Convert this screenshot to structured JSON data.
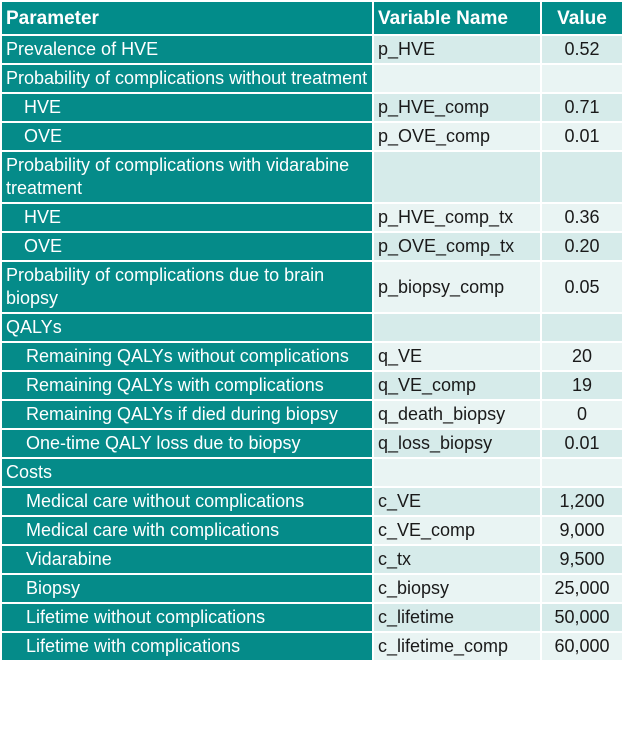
{
  "header": {
    "parameter": "Parameter",
    "variable": "Variable Name",
    "value": "Value"
  },
  "rows": [
    {
      "parameter": "Prevalence of HVE",
      "variable": "p_HVE",
      "value": "0.52",
      "level": 0
    },
    {
      "parameter": "Probability of complications without treatment",
      "variable": "",
      "value": "",
      "level": 0
    },
    {
      "parameter": "HVE",
      "variable": "p_HVE_comp",
      "value": "0.71",
      "level": 1
    },
    {
      "parameter": "OVE",
      "variable": "p_OVE_comp",
      "value": "0.01",
      "level": 1
    },
    {
      "parameter": "Probability of complications with vidarabine treatment",
      "variable": "",
      "value": "",
      "level": 0
    },
    {
      "parameter": "HVE",
      "variable": "p_HVE_comp_tx",
      "value": "0.36",
      "level": 1
    },
    {
      "parameter": "OVE",
      "variable": "p_OVE_comp_tx",
      "value": "0.20",
      "level": 1
    },
    {
      "parameter": "Probability of complications due to brain biopsy",
      "variable": "p_biopsy_comp",
      "value": "0.05",
      "level": 0
    },
    {
      "parameter": "QALYs",
      "variable": "",
      "value": "",
      "level": 0
    },
    {
      "parameter": "Remaining QALYs without complications",
      "variable": "q_VE",
      "value": "20",
      "level": 2
    },
    {
      "parameter": "Remaining QALYs with complications",
      "variable": "q_VE_comp",
      "value": "19",
      "level": 2
    },
    {
      "parameter": "Remaining QALYs if died during biopsy",
      "variable": "q_death_biopsy",
      "value": "0",
      "level": 2
    },
    {
      "parameter": "One-time QALY loss due to biopsy",
      "variable": "q_loss_biopsy",
      "value": "0.01",
      "level": 2
    },
    {
      "parameter": "Costs",
      "variable": "",
      "value": "",
      "level": 0
    },
    {
      "parameter": "Medical care without complications",
      "variable": "c_VE",
      "value": "1,200",
      "level": 2
    },
    {
      "parameter": "Medical care with complications",
      "variable": "c_VE_comp",
      "value": "9,000",
      "level": 2
    },
    {
      "parameter": "Vidarabine",
      "variable": "c_tx",
      "value": "9,500",
      "level": 2
    },
    {
      "parameter": "Biopsy",
      "variable": "c_biopsy",
      "value": "25,000",
      "level": 2
    },
    {
      "parameter": "Lifetime without complications",
      "variable": "c_lifetime",
      "value": "50,000",
      "level": 2
    },
    {
      "parameter": "Lifetime with complications",
      "variable": "c_lifetime_comp",
      "value": "60,000",
      "level": 2
    }
  ],
  "colors": {
    "header": "#028c8a",
    "parameter_cell": "#058b89",
    "value_cell": "#d6ebea",
    "value_cell_alt": "#e9f4f3"
  }
}
